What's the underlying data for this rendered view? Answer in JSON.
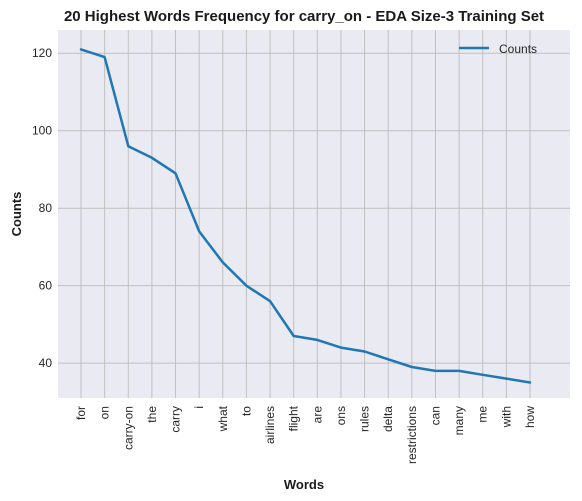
{
  "chart_data": {
    "type": "line",
    "title": "20 Highest Words Frequency for carry_on - EDA Size-3 Training Set",
    "xlabel": "Words",
    "ylabel": "Counts",
    "categories": [
      "for",
      "on",
      "carry-on",
      "the",
      "carry",
      "i",
      "what",
      "to",
      "airlines",
      "flight",
      "are",
      "ons",
      "rules",
      "delta",
      "restrictions",
      "can",
      "many",
      "me",
      "with",
      "how"
    ],
    "series": [
      {
        "name": "Counts",
        "values": [
          121,
          119,
          96,
          93,
          89,
          74,
          66,
          60,
          56,
          47,
          46,
          44,
          43,
          41,
          39,
          38,
          38,
          37,
          36,
          35
        ]
      }
    ],
    "ylim": [
      31,
      126
    ],
    "yticks": [
      40,
      60,
      80,
      100,
      120
    ],
    "grid": true,
    "legend_position": "top-right",
    "colors": {
      "line": "#1f77b4",
      "plot_background": "#eaeaf2",
      "grid": "#c0c0c0"
    }
  }
}
